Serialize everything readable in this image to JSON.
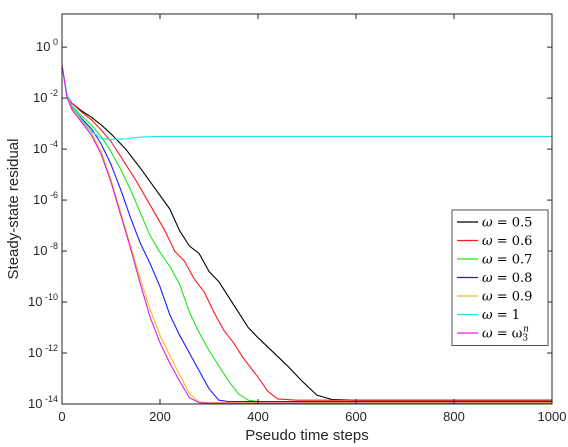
{
  "chart_data": {
    "type": "line",
    "title": "",
    "xlabel": "Pseudo time steps",
    "ylabel": "Steady-state residual",
    "xlim": [
      0,
      1000
    ],
    "ylim_log10": [
      -14,
      1.3
    ],
    "yscale": "log",
    "grid": false,
    "legend_position": "lower-right",
    "x_ticks": [
      {
        "value": 0,
        "label": "0"
      },
      {
        "value": 200,
        "label": "200"
      },
      {
        "value": 400,
        "label": "400"
      },
      {
        "value": 600,
        "label": "600"
      },
      {
        "value": 800,
        "label": "800"
      },
      {
        "value": 1000,
        "label": "1000"
      }
    ],
    "y_ticks": [
      {
        "exp": 0,
        "base": "10",
        "sup": "0"
      },
      {
        "exp": -2,
        "base": "10",
        "sup": "-2"
      },
      {
        "exp": -4,
        "base": "10",
        "sup": "-4"
      },
      {
        "exp": -6,
        "base": "10",
        "sup": "-6"
      },
      {
        "exp": -8,
        "base": "10",
        "sup": "-8"
      },
      {
        "exp": -10,
        "base": "10",
        "sup": "-10"
      },
      {
        "exp": -12,
        "base": "10",
        "sup": "-12"
      },
      {
        "exp": -14,
        "base": "10",
        "sup": "-14"
      }
    ],
    "series": [
      {
        "name": "ω = 0.5",
        "legend_omega": "ω",
        "legend_value": "= 0.5",
        "color": "#000000",
        "x": [
          0,
          10,
          20,
          40,
          60,
          80,
          100,
          130,
          160,
          190,
          220,
          240,
          260,
          280,
          300,
          320,
          340,
          360,
          380,
          400,
          430,
          460,
          490,
          520,
          550,
          600,
          700,
          800,
          900,
          1000
        ],
        "y": [
          -0.7,
          -1.9,
          -2.2,
          -2.5,
          -2.75,
          -3.05,
          -3.4,
          -4.0,
          -4.75,
          -5.55,
          -6.35,
          -7.2,
          -7.8,
          -8.1,
          -8.8,
          -9.2,
          -9.8,
          -10.4,
          -11.0,
          -11.4,
          -11.95,
          -12.5,
          -13.1,
          -13.65,
          -13.82,
          -13.85,
          -13.85,
          -13.85,
          -13.85,
          -13.85
        ]
      },
      {
        "name": "ω = 0.6",
        "legend_omega": "ω",
        "legend_value": "= 0.6",
        "color": "#ff1a1a",
        "x": [
          0,
          10,
          20,
          40,
          60,
          80,
          100,
          120,
          150,
          180,
          210,
          230,
          250,
          270,
          290,
          310,
          330,
          350,
          370,
          400,
          420,
          440,
          480,
          600,
          800,
          1000
        ],
        "y": [
          -0.7,
          -1.9,
          -2.2,
          -2.55,
          -2.85,
          -3.25,
          -3.7,
          -4.3,
          -5.2,
          -6.2,
          -7.2,
          -8.0,
          -8.4,
          -9.1,
          -9.6,
          -10.4,
          -11.1,
          -11.6,
          -12.2,
          -12.95,
          -13.5,
          -13.8,
          -13.85,
          -13.85,
          -13.85,
          -13.85
        ]
      },
      {
        "name": "ω = 0.7",
        "legend_omega": "ω",
        "legend_value": "= 0.7",
        "color": "#1ae61a",
        "x": [
          0,
          10,
          20,
          40,
          60,
          80,
          100,
          120,
          140,
          160,
          180,
          200,
          220,
          240,
          260,
          280,
          300,
          320,
          340,
          360,
          380,
          400,
          600,
          800,
          1000
        ],
        "y": [
          -0.7,
          -1.9,
          -2.3,
          -2.7,
          -3.05,
          -3.5,
          -4.1,
          -4.8,
          -5.6,
          -6.5,
          -7.4,
          -8.05,
          -8.6,
          -9.3,
          -10.4,
          -11.2,
          -11.9,
          -12.5,
          -13.1,
          -13.6,
          -13.85,
          -13.9,
          -13.9,
          -13.9,
          -13.9
        ]
      },
      {
        "name": "ω = 0.8",
        "legend_omega": "ω",
        "legend_value": "= 0.8",
        "color": "#1a1aff",
        "x": [
          0,
          10,
          20,
          40,
          60,
          80,
          100,
          120,
          140,
          160,
          180,
          200,
          220,
          240,
          260,
          280,
          300,
          320,
          340,
          600,
          800,
          1000
        ],
        "y": [
          -0.7,
          -1.9,
          -2.35,
          -2.8,
          -3.2,
          -3.8,
          -4.6,
          -5.6,
          -6.7,
          -7.7,
          -8.5,
          -9.4,
          -10.5,
          -11.3,
          -12.0,
          -12.7,
          -13.4,
          -13.85,
          -13.9,
          -13.9,
          -13.9,
          -13.9
        ]
      },
      {
        "name": "ω = 0.9",
        "legend_omega": "ω",
        "legend_value": "= 0.9",
        "color": "#e6c21a",
        "x": [
          0,
          10,
          20,
          40,
          60,
          80,
          100,
          120,
          140,
          160,
          180,
          200,
          220,
          240,
          260,
          280,
          300,
          600,
          800,
          1000
        ],
        "y": [
          -0.7,
          -1.9,
          -2.4,
          -2.9,
          -3.35,
          -4.1,
          -5.2,
          -6.5,
          -7.8,
          -9.1,
          -10.3,
          -11.3,
          -12.1,
          -12.85,
          -13.6,
          -13.92,
          -13.95,
          -13.95,
          -13.95,
          -13.95
        ]
      },
      {
        "name": "ω = 1",
        "legend_omega": "ω",
        "legend_value": "= 1",
        "color": "#1ae6e6",
        "x": [
          0,
          10,
          20,
          40,
          60,
          80,
          100,
          130,
          160,
          200,
          300,
          500,
          700,
          900,
          1000
        ],
        "y": [
          -0.7,
          -1.85,
          -2.3,
          -2.85,
          -3.3,
          -3.58,
          -3.62,
          -3.6,
          -3.53,
          -3.5,
          -3.5,
          -3.5,
          -3.5,
          -3.5,
          -3.5
        ]
      },
      {
        "name": "ω = ω3n",
        "legend_omega": "ω",
        "legend_value": "= ω",
        "legend_sub": "3",
        "legend_sup": "n",
        "color": "#e61ae6",
        "x": [
          0,
          10,
          20,
          40,
          60,
          80,
          100,
          120,
          140,
          160,
          180,
          200,
          220,
          240,
          260,
          280,
          300,
          600,
          800,
          1000
        ],
        "y": [
          -0.7,
          -1.95,
          -2.45,
          -2.95,
          -3.45,
          -4.2,
          -5.3,
          -6.6,
          -7.9,
          -9.3,
          -10.6,
          -11.6,
          -12.4,
          -13.1,
          -13.75,
          -13.95,
          -13.97,
          -13.97,
          -13.97,
          -13.97
        ]
      }
    ]
  }
}
